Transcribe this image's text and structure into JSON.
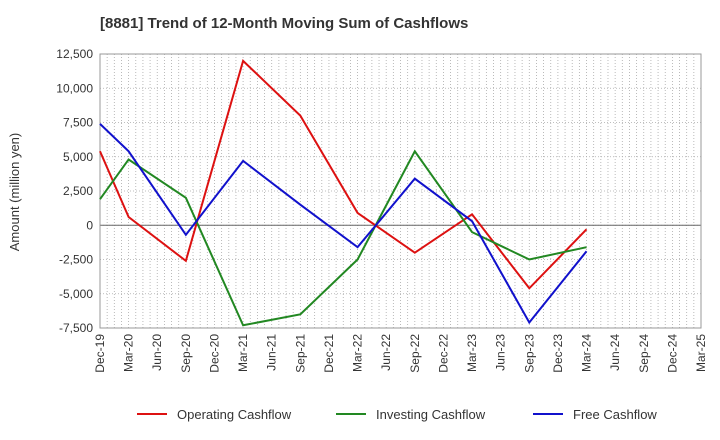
{
  "chart_data": {
    "type": "line",
    "title": "[8881]  Trend of 12-Month Moving Sum of Cashflows",
    "xlabel": "",
    "ylabel": "Amount (million yen)",
    "ylim": [
      -7500,
      12500
    ],
    "yticks": [
      12500,
      10000,
      7500,
      5000,
      2500,
      0,
      -2500,
      -5000,
      -7500
    ],
    "ytick_labels": [
      "12,500",
      "10,000",
      "7,500",
      "5,000",
      "2,500",
      "0",
      "-2,500",
      "-5,000",
      "-7,500"
    ],
    "x_labels": [
      "Dec-19",
      "Mar-20",
      "Jun-20",
      "Sep-20",
      "Dec-20",
      "Mar-21",
      "Jun-21",
      "Sep-21",
      "Dec-21",
      "Mar-22",
      "Jun-22",
      "Sep-22",
      "Dec-22",
      "Mar-23",
      "Jun-23",
      "Sep-23",
      "Dec-23",
      "Mar-24",
      "Jun-24",
      "Sep-24",
      "Dec-24",
      "Mar-25"
    ],
    "grid": true,
    "legend_position": "bottom",
    "series": [
      {
        "name": "Operating Cashflow",
        "color": "#dd1111",
        "points": [
          [
            "Dec-19",
            5400
          ],
          [
            "Mar-20",
            600
          ],
          [
            "Sep-20",
            -2600
          ],
          [
            "Mar-21",
            12000
          ],
          [
            "Sep-21",
            8000
          ],
          [
            "Mar-22",
            900
          ],
          [
            "Sep-22",
            -2000
          ],
          [
            "Mar-23",
            800
          ],
          [
            "Sep-23",
            -4600
          ],
          [
            "Mar-24",
            -300
          ]
        ]
      },
      {
        "name": "Investing Cashflow",
        "color": "#228822",
        "points": [
          [
            "Dec-19",
            1900
          ],
          [
            "Mar-20",
            4800
          ],
          [
            "Sep-20",
            2000
          ],
          [
            "Mar-21",
            -7300
          ],
          [
            "Sep-21",
            -6500
          ],
          [
            "Mar-22",
            -2500
          ],
          [
            "Sep-22",
            5400
          ],
          [
            "Mar-23",
            -500
          ],
          [
            "Sep-23",
            -2500
          ],
          [
            "Mar-24",
            -1600
          ]
        ]
      },
      {
        "name": "Free Cashflow",
        "color": "#1111cc",
        "points": [
          [
            "Dec-19",
            7400
          ],
          [
            "Mar-20",
            5400
          ],
          [
            "Sep-20",
            -700
          ],
          [
            "Mar-21",
            4700
          ],
          [
            "Sep-21",
            1500
          ],
          [
            "Mar-22",
            -1600
          ],
          [
            "Sep-22",
            3400
          ],
          [
            "Mar-23",
            300
          ],
          [
            "Sep-23",
            -7100
          ],
          [
            "Mar-24",
            -1900
          ]
        ]
      }
    ]
  }
}
